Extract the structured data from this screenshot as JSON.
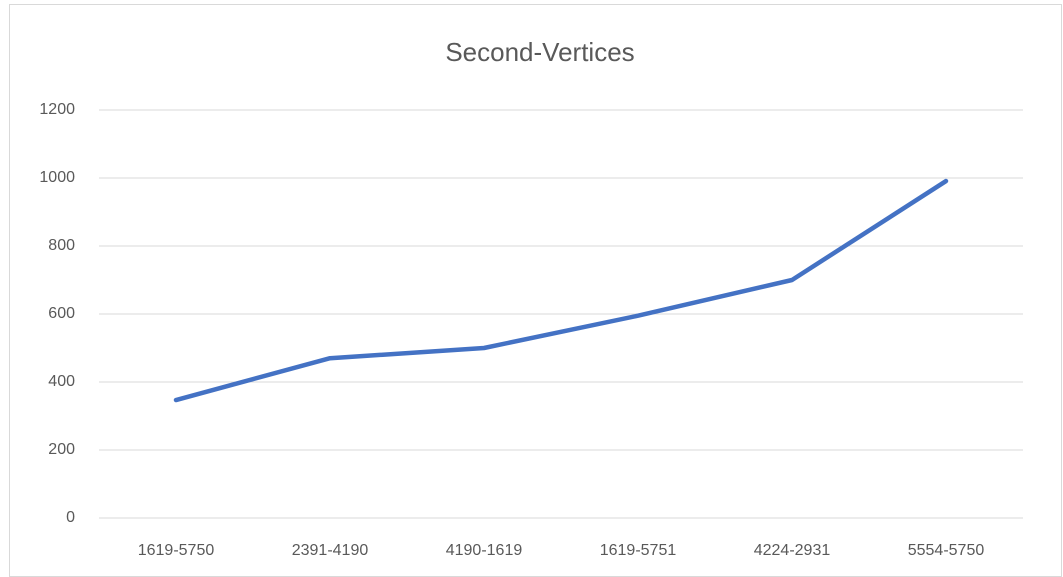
{
  "chart_data": {
    "type": "line",
    "title": "Second-Vertices",
    "categories": [
      "1619-5750",
      "2391-4190",
      "4190-1619",
      "1619-5751",
      "4224-2931",
      "5554-5750"
    ],
    "series": [
      {
        "name": "Second-Vertices",
        "color": "#4472c4",
        "values": [
          347,
          470,
          500,
          595,
          700,
          991
        ]
      }
    ],
    "ylim": [
      0,
      1200
    ],
    "yticks": [
      0,
      200,
      400,
      600,
      800,
      1000,
      1200
    ],
    "grid": true
  }
}
